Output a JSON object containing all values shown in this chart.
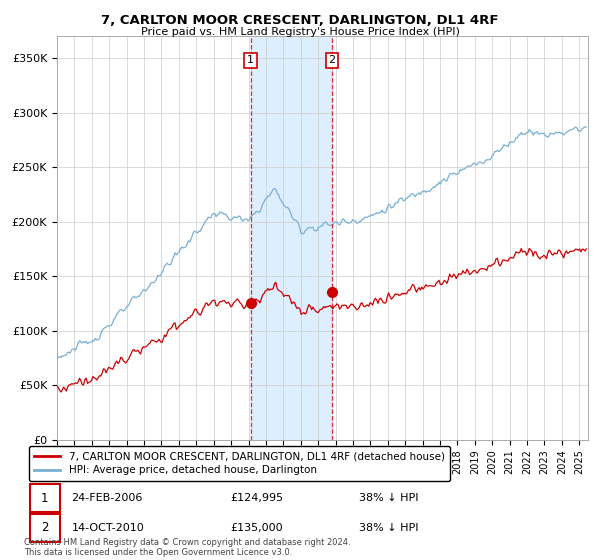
{
  "title": "7, CARLTON MOOR CRESCENT, DARLINGTON, DL1 4RF",
  "subtitle": "Price paid vs. HM Land Registry's House Price Index (HPI)",
  "ylabel_ticks": [
    "£0",
    "£50K",
    "£100K",
    "£150K",
    "£200K",
    "£250K",
    "£300K",
    "£350K"
  ],
  "ytick_values": [
    0,
    50000,
    100000,
    150000,
    200000,
    250000,
    300000,
    350000
  ],
  "ylim": [
    0,
    370000
  ],
  "xlim_start": 1995.0,
  "xlim_end": 2025.5,
  "hpi_color": "#7ab0d4",
  "price_color": "#cc0000",
  "vline_color": "#cc0000",
  "marker1_x": 2006.13,
  "marker1_y": 124995,
  "marker2_x": 2010.79,
  "marker2_y": 135000,
  "marker1_label": "1",
  "marker2_label": "2",
  "legend_line1": "7, CARLTON MOOR CRESCENT, DARLINGTON, DL1 4RF (detached house)",
  "legend_line2": "HPI: Average price, detached house, Darlington",
  "transaction1_date": "24-FEB-2006",
  "transaction1_price": "£124,995",
  "transaction1_hpi": "38% ↓ HPI",
  "transaction2_date": "14-OCT-2010",
  "transaction2_price": "£135,000",
  "transaction2_hpi": "38% ↓ HPI",
  "footnote": "Contains HM Land Registry data © Crown copyright and database right 2024.\nThis data is licensed under the Open Government Licence v3.0.",
  "background_color": "#ffffff",
  "grid_color": "#cccccc",
  "span_color": "#ddeeff"
}
